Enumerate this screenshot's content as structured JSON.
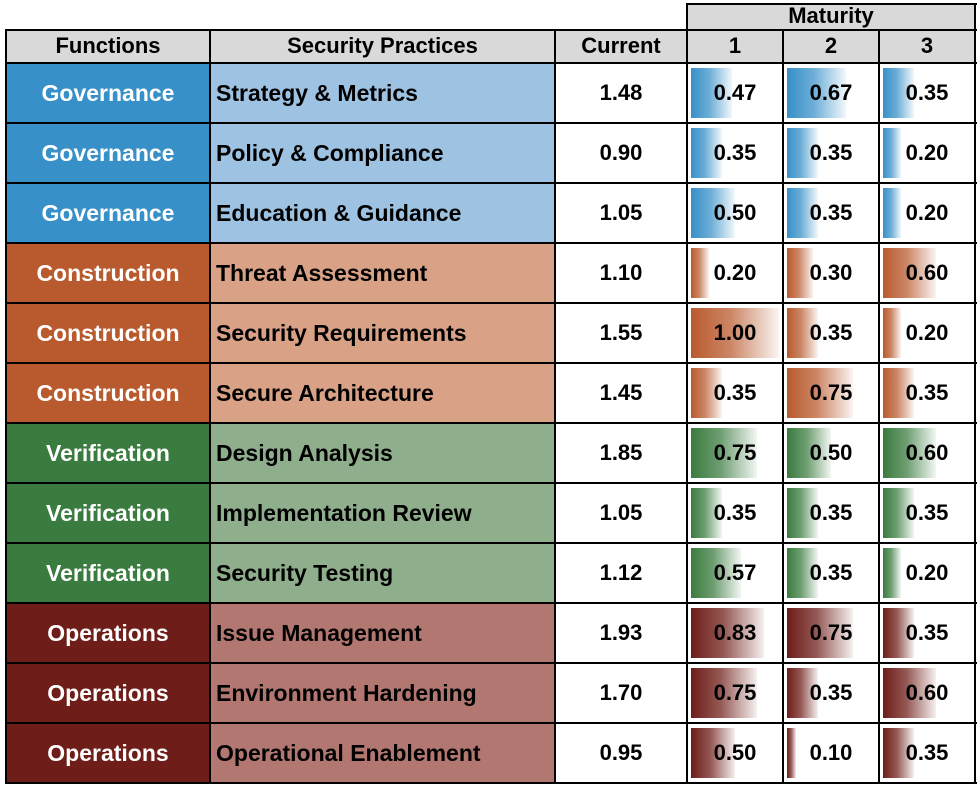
{
  "table": {
    "group_header": "Maturity",
    "headers": {
      "functions": "Functions",
      "practices": "Security Practices",
      "current": "Current",
      "levels": [
        "1",
        "2",
        "3"
      ]
    },
    "function_colors": {
      "Governance": {
        "dark": "#3790c8",
        "light": "#9dc2e2"
      },
      "Construction": {
        "dark": "#b95a2e",
        "light": "#d9a286"
      },
      "Verification": {
        "dark": "#3a7b3f",
        "light": "#8fae8c"
      },
      "Operations": {
        "dark": "#6e1d18",
        "light": "#b27770"
      }
    },
    "rows": [
      {
        "function": "Governance",
        "practice": "Strategy & Metrics",
        "current": "1.48",
        "levels": [
          "0.47",
          "0.67",
          "0.35"
        ]
      },
      {
        "function": "Governance",
        "practice": "Policy & Compliance",
        "current": "0.90",
        "levels": [
          "0.35",
          "0.35",
          "0.20"
        ]
      },
      {
        "function": "Governance",
        "practice": "Education & Guidance",
        "current": "1.05",
        "levels": [
          "0.50",
          "0.35",
          "0.20"
        ]
      },
      {
        "function": "Construction",
        "practice": "Threat Assessment",
        "current": "1.10",
        "levels": [
          "0.20",
          "0.30",
          "0.60"
        ]
      },
      {
        "function": "Construction",
        "practice": "Security Requirements",
        "current": "1.55",
        "levels": [
          "1.00",
          "0.35",
          "0.20"
        ]
      },
      {
        "function": "Construction",
        "practice": "Secure Architecture",
        "current": "1.45",
        "levels": [
          "0.35",
          "0.75",
          "0.35"
        ]
      },
      {
        "function": "Verification",
        "practice": "Design Analysis",
        "current": "1.85",
        "levels": [
          "0.75",
          "0.50",
          "0.60"
        ]
      },
      {
        "function": "Verification",
        "practice": "Implementation Review",
        "current": "1.05",
        "levels": [
          "0.35",
          "0.35",
          "0.35"
        ]
      },
      {
        "function": "Verification",
        "practice": "Security Testing",
        "current": "1.12",
        "levels": [
          "0.57",
          "0.35",
          "0.20"
        ]
      },
      {
        "function": "Operations",
        "practice": "Issue Management",
        "current": "1.93",
        "levels": [
          "0.83",
          "0.75",
          "0.35"
        ]
      },
      {
        "function": "Operations",
        "practice": "Environment Hardening",
        "current": "1.70",
        "levels": [
          "0.75",
          "0.35",
          "0.60"
        ]
      },
      {
        "function": "Operations",
        "practice": "Operational Enablement",
        "current": "0.95",
        "levels": [
          "0.50",
          "0.10",
          "0.35"
        ]
      }
    ]
  },
  "chart_data": {
    "type": "table",
    "columns": [
      "Functions",
      "Security Practices",
      "Current",
      "1",
      "2",
      "3"
    ],
    "column_group": {
      "label": "Maturity",
      "columns": [
        "1",
        "2",
        "3"
      ]
    },
    "data_bars": {
      "columns": [
        "1",
        "2",
        "3"
      ],
      "max": 1.0
    }
  }
}
